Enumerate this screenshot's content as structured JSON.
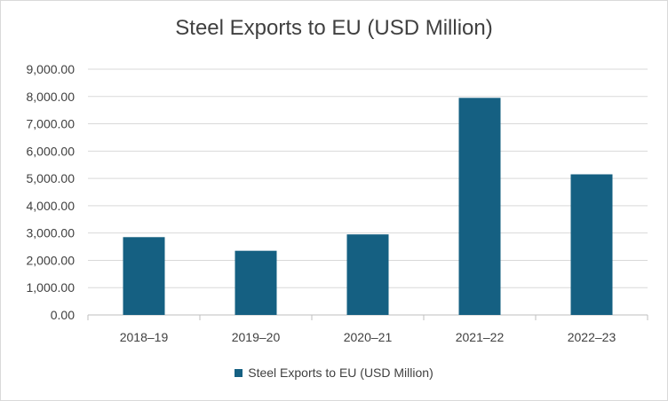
{
  "chart_data": {
    "type": "bar",
    "title": "Steel Exports to EU (USD Million)",
    "categories": [
      "2018–19",
      "2019–20",
      "2020–21",
      "2021–22",
      "2022–23"
    ],
    "series": [
      {
        "name": "Steel Exports to EU (USD Million)",
        "values": [
          2850,
          2350,
          2950,
          7950,
          5150
        ],
        "color": "#156082"
      }
    ],
    "ylim": [
      0,
      9000
    ],
    "yticks": [
      "0.00",
      "1,000.00",
      "2,000.00",
      "3,000.00",
      "4,000.00",
      "5,000.00",
      "6,000.00",
      "7,000.00",
      "8,000.00",
      "9,000.00"
    ],
    "xlabel": "",
    "ylabel": "",
    "grid": true,
    "legend_position": "bottom"
  }
}
